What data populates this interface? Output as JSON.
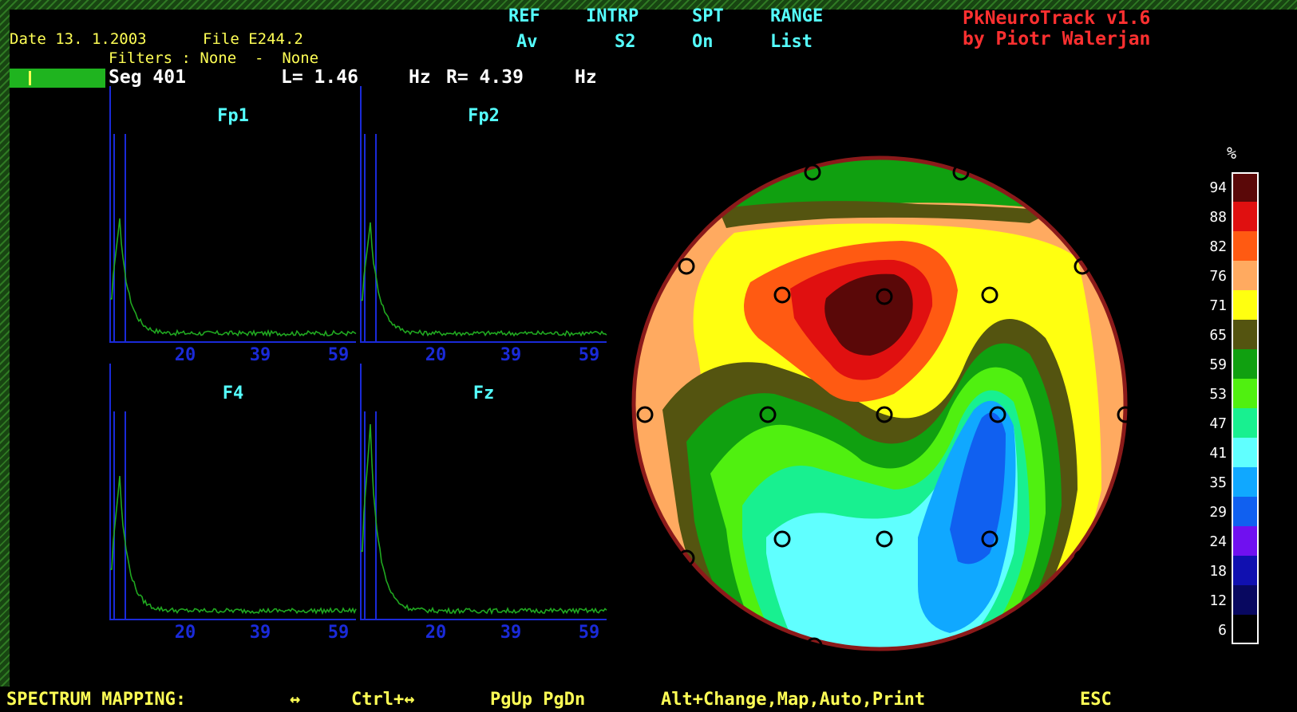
{
  "app": {
    "title": "PkNeuroTrack v1.6",
    "author": "by Piotr Walerjan"
  },
  "header": {
    "date_text": "Date 13. 1.2003",
    "file_text": "File E244.2",
    "filters_text": "Filters : None  -  None",
    "seg_text": "Seg 401",
    "l_text": "L= 1.46",
    "hz1": "Hz",
    "r_text": "R= 4.39",
    "hz2": "Hz"
  },
  "settings": {
    "ref_label": "REF",
    "ref_value": "Av",
    "intrp_label": "INTRP",
    "intrp_value": "S2",
    "spt_label": "SPT",
    "spt_value": "On",
    "range_label": "RANGE",
    "range_value": "List"
  },
  "spectra": [
    {
      "channel": "Fp1",
      "ticks": [
        "20",
        "39",
        "59"
      ],
      "peak": 0.62
    },
    {
      "channel": "Fp2",
      "ticks": [
        "20",
        "39",
        "59"
      ],
      "peak": 0.6
    },
    {
      "channel": "F4",
      "ticks": [
        "20",
        "39",
        "59"
      ],
      "peak": 0.72
    },
    {
      "channel": "Fz",
      "ticks": [
        "20",
        "39",
        "59"
      ],
      "peak": 0.98
    }
  ],
  "legend": {
    "unit": "%",
    "values": [
      "94",
      "88",
      "82",
      "76",
      "71",
      "65",
      "59",
      "53",
      "47",
      "41",
      "35",
      "29",
      "24",
      "18",
      "12",
      "6"
    ],
    "colors": [
      "#5a0808",
      "#e01010",
      "#ff5a12",
      "#ffaa60",
      "#ffff10",
      "#545410",
      "#10a010",
      "#50f010",
      "#18f090",
      "#60ffff",
      "#10a8ff",
      "#1060f0",
      "#7010f0",
      "#1010b0",
      "#080860",
      "#000000"
    ]
  },
  "map_colors": {
    "rim": "#8b1a1a",
    "electrode": "#000000"
  },
  "statusbar": {
    "title": "SPECTRUM MAPPING:",
    "arrows": "↔",
    "ctrl": "Ctrl+↔",
    "pg": "PgUp PgDn",
    "alt": "Alt+Change,Map,Auto,Print",
    "esc": "ESC"
  }
}
